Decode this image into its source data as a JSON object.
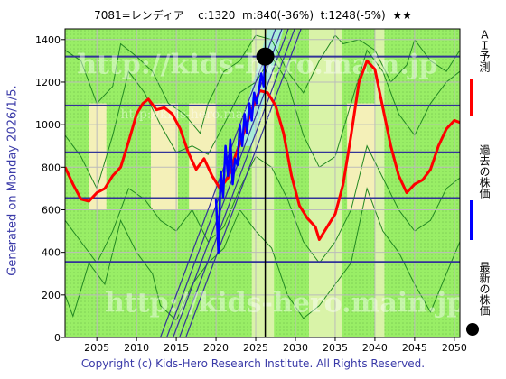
{
  "header": {
    "ticker": "7081=レンディア",
    "current": "c:1320",
    "min": "m:840(-36%)",
    "target": "t:1248(-5%)",
    "stars": "★★"
  },
  "side_caption": "Generated on Monday 2026/1/5.",
  "copyright": "Copyright (c) Kids-Hero Research Institute. All Rights Reserved.",
  "watermark": "http://kids-hero.main.jp",
  "legend": {
    "ai_forecast": "ＡＩ予測",
    "past_price": "過去の株価",
    "latest_price": "最新の株価"
  },
  "colors": {
    "background_band": "#99ee66",
    "highlight_band": "#d9f3a8",
    "pale_band": "#f4f0b8",
    "cyan_band": "#a8ecd8",
    "forecast": "#ff0000",
    "price": "#0000ff",
    "hline": "#333399",
    "thin": "#228822"
  },
  "chart_data": {
    "type": "line",
    "title": "7081=レンディア c:1320 m:840(-36%) t:1248(-5%) ★★",
    "xlim": [
      2001,
      2050.7
    ],
    "ylim": [
      0,
      1450
    ],
    "x_ticks": [
      2005,
      2010,
      2015,
      2020,
      2025,
      2030,
      2035,
      2040,
      2045,
      2050
    ],
    "y_ticks": [
      0,
      200,
      400,
      600,
      800,
      1000,
      1200,
      1400
    ],
    "grid": true,
    "horizontal_levels": [
      355,
      655,
      870,
      1090,
      1320
    ],
    "current_marker": {
      "x": 2026.2,
      "y": 1320
    },
    "current_vline_x": 2026.2,
    "highlight_bands": [
      [
        2024.5,
        2027.3
      ],
      [
        2031.7,
        2035.8
      ],
      [
        2040.0,
        2041.2
      ]
    ],
    "pale_bands": [
      [
        2004.0,
        2006.2
      ],
      [
        2011.8,
        2015.2
      ],
      [
        2016.6,
        2020.0
      ],
      [
        2036.5,
        2040.0
      ]
    ],
    "trend_lines": [
      {
        "x": [
          2013.0,
          2027.5
        ],
        "y": [
          0,
          1450
        ]
      },
      {
        "x": [
          2013.8,
          2028.3
        ],
        "y": [
          0,
          1450
        ]
      },
      {
        "x": [
          2014.6,
          2029.1
        ],
        "y": [
          0,
          1450
        ]
      },
      {
        "x": [
          2015.4,
          2029.9
        ],
        "y": [
          0,
          1450
        ]
      },
      {
        "x": [
          2016.2,
          2030.7
        ],
        "y": [
          0,
          1450
        ]
      }
    ],
    "series": [
      {
        "name": "ＡＩ予測",
        "x": [
          2001.0,
          2002.0,
          2003.0,
          2004.0,
          2005.0,
          2006.0,
          2007.0,
          2008.0,
          2009.0,
          2010.0,
          2010.8,
          2011.5,
          2012.5,
          2013.5,
          2014.5,
          2015.5,
          2016.5,
          2017.5,
          2018.5,
          2019.5,
          2020.5,
          2021.5,
          2022.5,
          2023.5,
          2024.5,
          2025.5,
          2026.5,
          2027.5,
          2028.5,
          2029.5,
          2030.5,
          2031.5,
          2032.5,
          2033.0,
          2034.0,
          2035.0,
          2036.0,
          2037.0,
          2038.0,
          2039.0,
          2040.0,
          2041.0,
          2042.0,
          2043.0,
          2044.0,
          2045.0,
          2046.0,
          2047.0,
          2048.0,
          2049.0,
          2050.0,
          2050.7
        ],
        "values": [
          800,
          720,
          650,
          640,
          680,
          700,
          760,
          800,
          920,
          1050,
          1100,
          1120,
          1070,
          1080,
          1050,
          980,
          870,
          790,
          840,
          760,
          700,
          750,
          860,
          960,
          1070,
          1160,
          1150,
          1090,
          960,
          760,
          620,
          560,
          520,
          460,
          520,
          580,
          720,
          950,
          1200,
          1300,
          1260,
          1080,
          900,
          760,
          680,
          720,
          740,
          790,
          900,
          980,
          1020,
          1010
        ]
      },
      {
        "name": "過去の株価",
        "x": [
          2020.0,
          2020.3,
          2020.6,
          2020.9,
          2021.2,
          2021.5,
          2021.8,
          2022.1,
          2022.4,
          2022.7,
          2023.0,
          2023.3,
          2023.6,
          2023.9,
          2024.2,
          2024.5,
          2024.8,
          2025.1,
          2025.4,
          2025.7,
          2026.0,
          2026.2
        ],
        "values": [
          650,
          400,
          780,
          660,
          900,
          760,
          930,
          720,
          840,
          810,
          1000,
          900,
          1050,
          960,
          1100,
          1020,
          1150,
          1100,
          1160,
          1240,
          1180,
          1320
        ]
      }
    ],
    "thin_series": [
      {
        "x": [
          2001,
          2003,
          2005,
          2007,
          2008,
          2010,
          2012,
          2014,
          2016,
          2018,
          2019,
          2021,
          2023,
          2025,
          2027,
          2029,
          2031,
          2033,
          2035,
          2036,
          2038,
          2040,
          2042,
          2044,
          2045,
          2047,
          2049,
          2050.7
        ],
        "values": [
          1350,
          1300,
          1100,
          1180,
          1380,
          1320,
          1250,
          1100,
          1050,
          960,
          1100,
          1250,
          1300,
          1420,
          1400,
          1250,
          1150,
          1300,
          1420,
          1380,
          1400,
          1350,
          1200,
          1280,
          1400,
          1300,
          1250,
          1350
        ]
      },
      {
        "x": [
          2001,
          2002,
          2004,
          2006,
          2008,
          2010,
          2012,
          2013,
          2015,
          2017,
          2019,
          2021,
          2023,
          2025,
          2027,
          2029,
          2031,
          2033,
          2035,
          2037,
          2039,
          2041,
          2043,
          2045,
          2047,
          2049,
          2050.7
        ],
        "values": [
          200,
          100,
          350,
          250,
          550,
          400,
          300,
          150,
          80,
          250,
          350,
          420,
          600,
          500,
          420,
          200,
          90,
          150,
          250,
          350,
          700,
          500,
          400,
          250,
          120,
          300,
          450
        ]
      },
      {
        "x": [
          2001,
          2003,
          2005,
          2007,
          2009,
          2011,
          2013,
          2015,
          2017,
          2019,
          2021,
          2023,
          2025,
          2027,
          2029,
          2031,
          2033,
          2035,
          2037,
          2039,
          2041,
          2043,
          2045,
          2047,
          2049,
          2050.7
        ],
        "values": [
          950,
          850,
          700,
          950,
          1250,
          1150,
          1000,
          870,
          900,
          860,
          1000,
          1150,
          1200,
          1320,
          1200,
          950,
          800,
          850,
          1100,
          1350,
          1250,
          1050,
          950,
          1100,
          1200,
          1250
        ]
      },
      {
        "x": [
          2001,
          2003,
          2005,
          2007,
          2009,
          2011,
          2013,
          2015,
          2017,
          2019,
          2021,
          2023,
          2025,
          2027,
          2029,
          2031,
          2033,
          2035,
          2037,
          2039,
          2041,
          2043,
          2045,
          2047,
          2049,
          2050.7
        ],
        "values": [
          550,
          450,
          350,
          500,
          700,
          650,
          550,
          500,
          600,
          450,
          520,
          700,
          850,
          800,
          650,
          450,
          350,
          450,
          600,
          900,
          750,
          600,
          500,
          550,
          700,
          750
        ]
      }
    ]
  }
}
